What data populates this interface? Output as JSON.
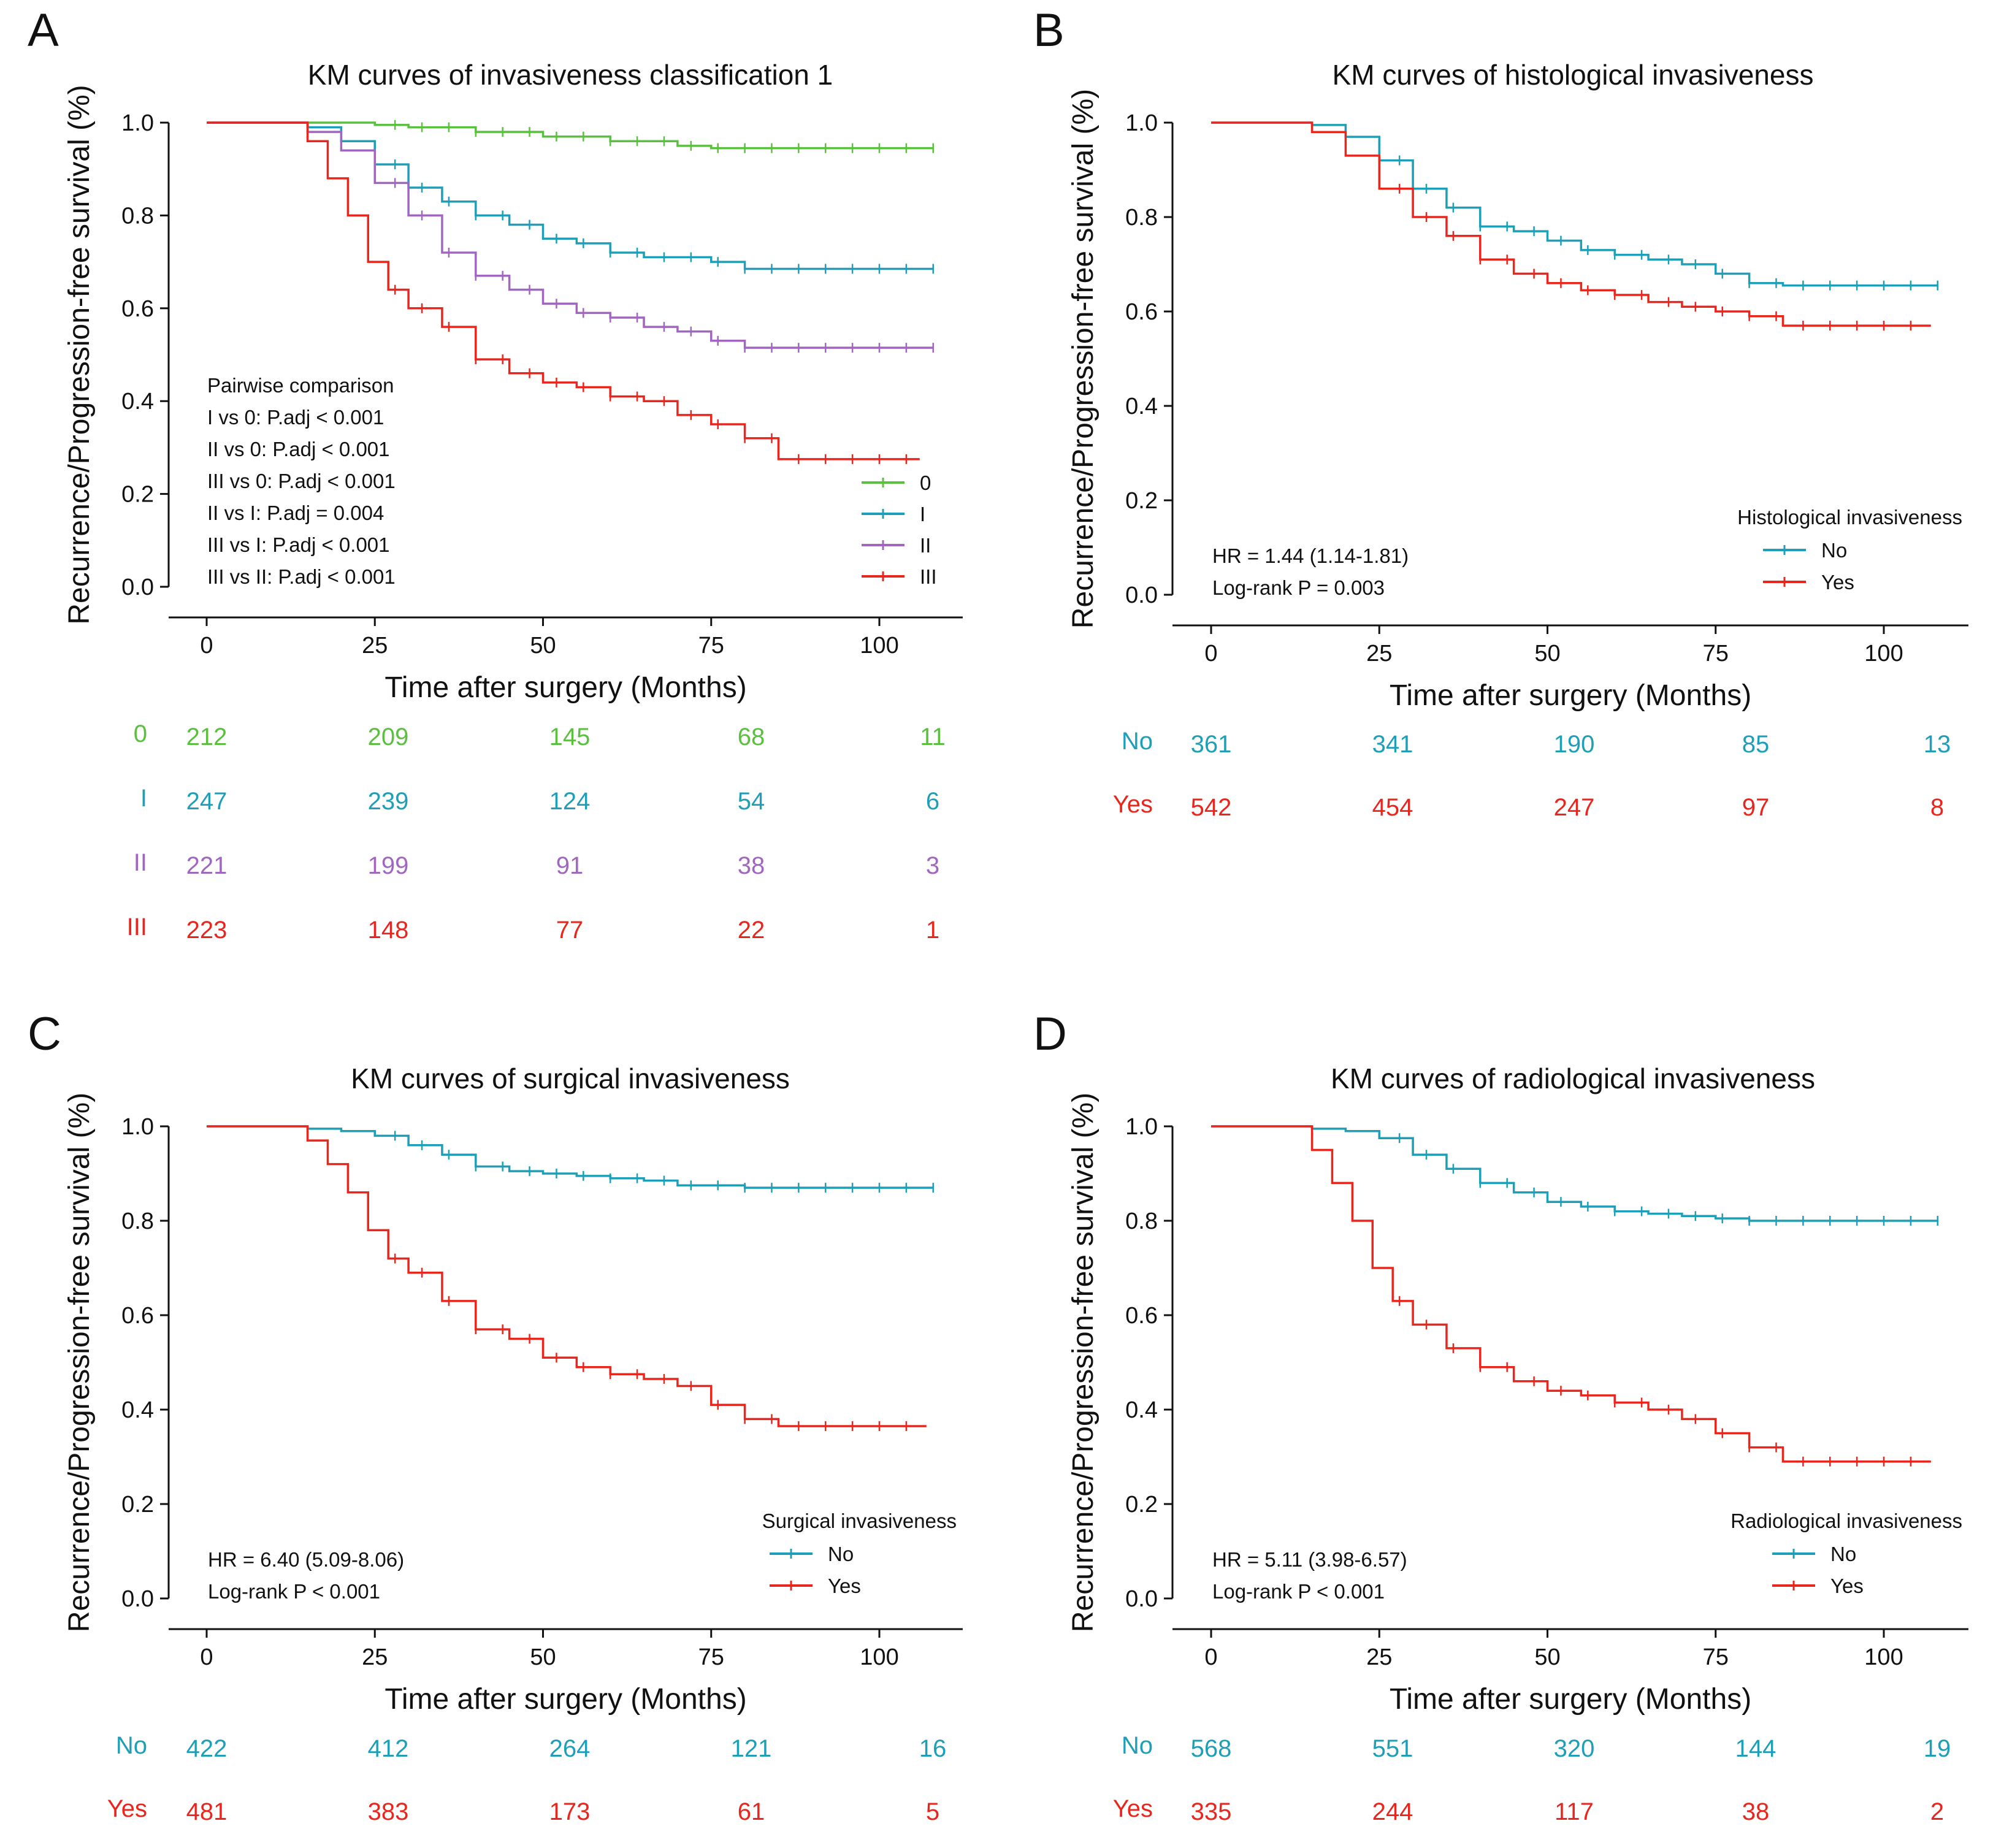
{
  "figure": {
    "colors": {
      "green": "#5bbf3f",
      "blue": "#1f9fb7",
      "purple": "#a066c0",
      "red": "#e8261e"
    },
    "common": {
      "xlabel": "Time after surgery (Months)",
      "ylabel": "Recurrence/Progression-free survival (%)",
      "xticks": [
        "0",
        "25",
        "50",
        "75",
        "100"
      ],
      "yticks": [
        "0.0",
        "0.2",
        "0.4",
        "0.6",
        "0.8",
        "1.0"
      ]
    }
  },
  "chart_data": [
    {
      "type": "line",
      "panel": "A",
      "title": "KM curves of invasiveness classification 1",
      "xlabel": "Time after surgery (Months)",
      "ylabel": "Recurrence/Progression-free survival (%)",
      "xlim": [
        -5,
        110
      ],
      "ylim": [
        0,
        1
      ],
      "stats": [
        "Pairwise comparison",
        "I vs 0: P.adj < 0.001",
        "II vs 0: P.adj < 0.001",
        "III vs 0: P.adj < 0.001",
        "II vs I: P.adj = 0.004",
        "III vs I: P.adj < 0.001",
        "III vs II: P.adj < 0.001"
      ],
      "legend_title": "",
      "series": [
        {
          "name": "0",
          "color": "#5bbf3f",
          "end": 108,
          "x": [
            0,
            15,
            25,
            30,
            40,
            50,
            60,
            70,
            75,
            100,
            108
          ],
          "y": [
            1.0,
            1.0,
            0.995,
            0.99,
            0.98,
            0.97,
            0.96,
            0.95,
            0.945,
            0.945,
            0.945
          ],
          "at_risk": [
            "212",
            "209",
            "145",
            "68",
            "11"
          ]
        },
        {
          "name": "I",
          "color": "#1f9fb7",
          "end": 108,
          "x": [
            0,
            10,
            15,
            20,
            25,
            30,
            35,
            40,
            45,
            50,
            55,
            60,
            65,
            70,
            75,
            80,
            100,
            108
          ],
          "y": [
            1.0,
            1.0,
            0.99,
            0.96,
            0.91,
            0.86,
            0.83,
            0.8,
            0.78,
            0.75,
            0.74,
            0.72,
            0.71,
            0.71,
            0.7,
            0.685,
            0.685,
            0.685
          ],
          "at_risk": [
            "247",
            "239",
            "124",
            "54",
            "6"
          ]
        },
        {
          "name": "II",
          "color": "#a066c0",
          "end": 108,
          "x": [
            0,
            10,
            15,
            20,
            25,
            30,
            35,
            40,
            45,
            50,
            55,
            60,
            65,
            70,
            75,
            80,
            100,
            108
          ],
          "y": [
            1.0,
            1.0,
            0.98,
            0.94,
            0.87,
            0.8,
            0.72,
            0.67,
            0.64,
            0.61,
            0.59,
            0.58,
            0.56,
            0.55,
            0.53,
            0.515,
            0.515,
            0.515
          ],
          "at_risk": [
            "221",
            "199",
            "91",
            "38",
            "3"
          ]
        },
        {
          "name": "III",
          "color": "#e8261e",
          "end": 106,
          "x": [
            0,
            12,
            15,
            18,
            21,
            24,
            27,
            30,
            35,
            40,
            45,
            50,
            55,
            60,
            65,
            70,
            75,
            80,
            85,
            100,
            106
          ],
          "y": [
            1.0,
            1.0,
            0.96,
            0.88,
            0.8,
            0.7,
            0.64,
            0.6,
            0.56,
            0.49,
            0.46,
            0.44,
            0.43,
            0.41,
            0.4,
            0.37,
            0.35,
            0.32,
            0.275,
            0.275,
            0.275
          ],
          "at_risk": [
            "223",
            "148",
            "77",
            "22",
            "1"
          ]
        }
      ]
    },
    {
      "type": "line",
      "panel": "B",
      "title": "KM curves of histological invasiveness",
      "xlabel": "Time after surgery (Months)",
      "ylabel": "Recurrence/Progression-free survival (%)",
      "xlim": [
        -5,
        110
      ],
      "ylim": [
        0,
        1
      ],
      "stats": [
        "HR = 1.44 (1.14-1.81)",
        "Log-rank P = 0.003"
      ],
      "legend_title": "Histological invasiveness",
      "series": [
        {
          "name": "No",
          "color": "#1f9fb7",
          "end": 108,
          "x": [
            0,
            10,
            15,
            20,
            25,
            30,
            35,
            40,
            45,
            50,
            55,
            60,
            65,
            70,
            75,
            80,
            85,
            100,
            108
          ],
          "y": [
            1.0,
            1.0,
            0.995,
            0.97,
            0.92,
            0.86,
            0.82,
            0.78,
            0.77,
            0.75,
            0.73,
            0.72,
            0.71,
            0.7,
            0.68,
            0.66,
            0.655,
            0.655,
            0.655
          ],
          "at_risk": [
            "361",
            "341",
            "190",
            "85",
            "13"
          ]
        },
        {
          "name": "Yes",
          "color": "#e8261e",
          "end": 107,
          "x": [
            0,
            10,
            15,
            20,
            25,
            30,
            35,
            40,
            45,
            50,
            55,
            60,
            65,
            70,
            75,
            80,
            85,
            100,
            107
          ],
          "y": [
            1.0,
            1.0,
            0.98,
            0.93,
            0.86,
            0.8,
            0.76,
            0.71,
            0.68,
            0.66,
            0.645,
            0.635,
            0.62,
            0.61,
            0.6,
            0.59,
            0.57,
            0.57,
            0.57
          ],
          "at_risk": [
            "542",
            "454",
            "247",
            "97",
            "8"
          ]
        }
      ]
    },
    {
      "type": "line",
      "panel": "C",
      "title": "KM curves of surgical invasiveness",
      "xlabel": "Time after surgery (Months)",
      "ylabel": "Recurrence/Progression-free survival (%)",
      "xlim": [
        -5,
        110
      ],
      "ylim": [
        0,
        1
      ],
      "stats": [
        "HR = 6.40 (5.09-8.06)",
        "Log-rank P < 0.001"
      ],
      "legend_title": "Surgical invasiveness",
      "series": [
        {
          "name": "No",
          "color": "#1f9fb7",
          "end": 108,
          "x": [
            0,
            10,
            15,
            20,
            25,
            30,
            35,
            40,
            45,
            50,
            55,
            60,
            65,
            70,
            75,
            80,
            100,
            108
          ],
          "y": [
            1.0,
            1.0,
            0.995,
            0.99,
            0.98,
            0.96,
            0.94,
            0.915,
            0.905,
            0.9,
            0.895,
            0.89,
            0.885,
            0.875,
            0.875,
            0.87,
            0.87,
            0.87
          ],
          "at_risk": [
            "422",
            "412",
            "264",
            "121",
            "16"
          ]
        },
        {
          "name": "Yes",
          "color": "#e8261e",
          "end": 107,
          "x": [
            0,
            10,
            15,
            18,
            21,
            24,
            27,
            30,
            35,
            40,
            45,
            50,
            55,
            60,
            65,
            70,
            75,
            80,
            85,
            100,
            107
          ],
          "y": [
            1.0,
            1.0,
            0.97,
            0.92,
            0.86,
            0.78,
            0.72,
            0.69,
            0.63,
            0.57,
            0.55,
            0.51,
            0.49,
            0.475,
            0.465,
            0.45,
            0.41,
            0.38,
            0.365,
            0.365,
            0.365
          ],
          "at_risk": [
            "481",
            "383",
            "173",
            "61",
            "5"
          ]
        }
      ]
    },
    {
      "type": "line",
      "panel": "D",
      "title": "KM curves of radiological invasiveness",
      "xlabel": "Time after surgery (Months)",
      "ylabel": "Recurrence/Progression-free survival (%)",
      "xlim": [
        -5,
        110
      ],
      "ylim": [
        0,
        1
      ],
      "stats": [
        "HR = 5.11 (3.98-6.57)",
        "Log-rank P < 0.001"
      ],
      "legend_title": "Radiological invasiveness",
      "series": [
        {
          "name": "No",
          "color": "#1f9fb7",
          "end": 108,
          "x": [
            0,
            10,
            15,
            20,
            25,
            30,
            35,
            40,
            45,
            50,
            55,
            60,
            65,
            70,
            75,
            80,
            100,
            108
          ],
          "y": [
            1.0,
            1.0,
            0.995,
            0.99,
            0.975,
            0.94,
            0.91,
            0.88,
            0.86,
            0.84,
            0.83,
            0.82,
            0.815,
            0.81,
            0.805,
            0.8,
            0.8,
            0.8
          ],
          "at_risk": [
            "568",
            "551",
            "320",
            "144",
            "19"
          ]
        },
        {
          "name": "Yes",
          "color": "#e8261e",
          "end": 107,
          "x": [
            0,
            10,
            15,
            18,
            21,
            24,
            27,
            30,
            35,
            40,
            45,
            50,
            55,
            60,
            65,
            70,
            75,
            80,
            85,
            100,
            107
          ],
          "y": [
            1.0,
            1.0,
            0.95,
            0.88,
            0.8,
            0.7,
            0.63,
            0.58,
            0.53,
            0.49,
            0.46,
            0.44,
            0.43,
            0.415,
            0.4,
            0.38,
            0.35,
            0.32,
            0.29,
            0.29,
            0.29
          ],
          "at_risk": [
            "335",
            "244",
            "117",
            "38",
            "2"
          ]
        }
      ]
    }
  ]
}
